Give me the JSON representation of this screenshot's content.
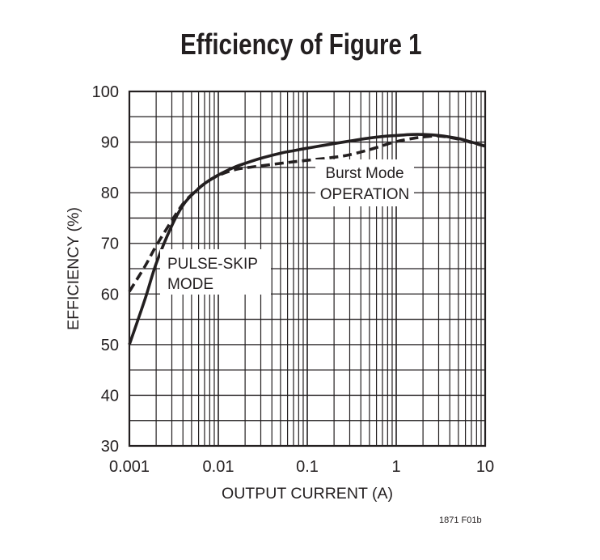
{
  "title": "Efficiency of Figure 1",
  "figure_id": "1871 F01b",
  "colors": {
    "ink": "#231f20",
    "background": "#ffffff"
  },
  "chart_data": {
    "type": "line",
    "title": "Efficiency of Figure 1",
    "xlabel": "OUTPUT CURRENT (A)",
    "ylabel": "EFFICIENCY (%)",
    "xscale": "log",
    "xlim": [
      0.001,
      10
    ],
    "ylim": [
      30,
      100
    ],
    "xticks": [
      "0.001",
      "0.01",
      "0.1",
      "1",
      "10"
    ],
    "yticks": [
      "30",
      "40",
      "50",
      "60",
      "70",
      "80",
      "90",
      "100"
    ],
    "grid": true,
    "legend": "inline annotations",
    "annotations": [
      {
        "text": [
          "PULSE-SKIP",
          "MODE"
        ],
        "series": "Pulse-Skip Mode"
      },
      {
        "text": [
          "Burst Mode",
          "OPERATION"
        ],
        "series": "Burst Mode Operation"
      }
    ],
    "series": [
      {
        "name": "Pulse-Skip Mode",
        "style": "solid",
        "x": [
          0.001,
          0.0015,
          0.002,
          0.003,
          0.004,
          0.005,
          0.007,
          0.01,
          0.015,
          0.02,
          0.03,
          0.05,
          0.07,
          0.1,
          0.2,
          0.3,
          0.5,
          0.7,
          1,
          1.5,
          2,
          3,
          5,
          7,
          10
        ],
        "y": [
          50,
          59,
          66,
          73.5,
          77.5,
          79.5,
          81.8,
          83.5,
          85,
          85.8,
          86.8,
          87.8,
          88.3,
          88.8,
          89.7,
          90.2,
          90.8,
          91.1,
          91.3,
          91.5,
          91.5,
          91.3,
          90.7,
          90.0,
          89.2
        ]
      },
      {
        "name": "Burst Mode Operation",
        "style": "dashed",
        "x": [
          0.001,
          0.0015,
          0.002,
          0.003,
          0.004,
          0.005,
          0.007,
          0.01,
          0.015,
          0.02,
          0.03,
          0.05,
          0.07,
          0.1,
          0.2,
          0.3,
          0.5,
          0.7,
          1,
          1.5,
          2,
          3,
          5,
          7,
          10
        ],
        "y": [
          60.5,
          65.5,
          69.5,
          74.5,
          77.8,
          79.6,
          81.8,
          83.4,
          84.5,
          84.9,
          85.3,
          85.8,
          86.1,
          86.4,
          87.0,
          87.5,
          88.5,
          89.3,
          90.1,
          90.7,
          91.0,
          91.2,
          90.6,
          89.9,
          89.2
        ]
      }
    ]
  }
}
